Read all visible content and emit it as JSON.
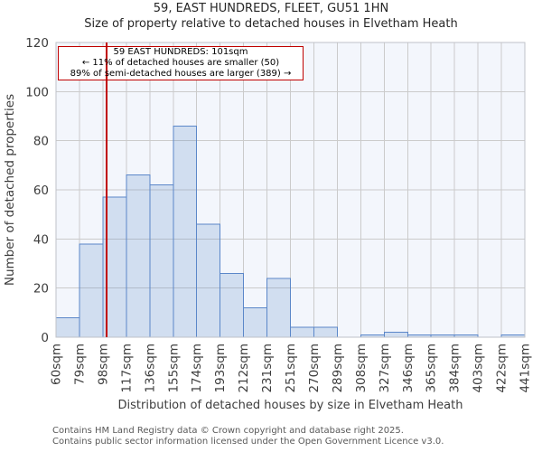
{
  "annotation": {
    "line1": "59 EAST HUNDREDS: 101sqm",
    "line2": "← 11% of detached houses are smaller (50)",
    "line3": "89% of semi-detached houses are larger (389) →"
  },
  "footer": {
    "line1": "Contains HM Land Registry data © Crown copyright and database right 2025.",
    "line2": "Contains public sector information licensed under the Open Government Licence v3.0."
  },
  "chart_data": {
    "type": "bar",
    "title": "59, EAST HUNDREDS, FLEET, GU51 1HN",
    "subtitle": "Size of property relative to detached houses in Elvetham Heath",
    "xlabel": "Distribution of detached houses by size in Elvetham Heath",
    "ylabel": "Number of detached properties",
    "categories": [
      "60sqm",
      "79sqm",
      "98sqm",
      "117sqm",
      "136sqm",
      "155sqm",
      "174sqm",
      "193sqm",
      "212sqm",
      "231sqm",
      "251sqm",
      "270sqm",
      "289sqm",
      "308sqm",
      "327sqm",
      "346sqm",
      "365sqm",
      "384sqm",
      "403sqm",
      "422sqm",
      "441sqm"
    ],
    "values": [
      8,
      38,
      57,
      66,
      62,
      86,
      46,
      26,
      12,
      24,
      4,
      4,
      0,
      1,
      2,
      1,
      1,
      1,
      0,
      1
    ],
    "bin_start_sqm": 60,
    "bin_end_sqm": 441,
    "ylim": [
      0,
      120
    ],
    "yticks": [
      0,
      20,
      40,
      60,
      80,
      100,
      120
    ],
    "grid": true,
    "legend": "none",
    "marker": {
      "value_sqm": 101,
      "label": "101sqm"
    },
    "colors": {
      "bar_fill": "rgba(91,135,201,0.22)",
      "bar_stroke": "#5b87c9",
      "marker_line": "#c00000",
      "plot_bg": "#f3f6fc",
      "gridline": "#cbcbcb",
      "plot_border": "#bfc2c8",
      "tick_text": "#3d3d3d",
      "title_text": "#262626",
      "footer_text": "#595959"
    }
  }
}
